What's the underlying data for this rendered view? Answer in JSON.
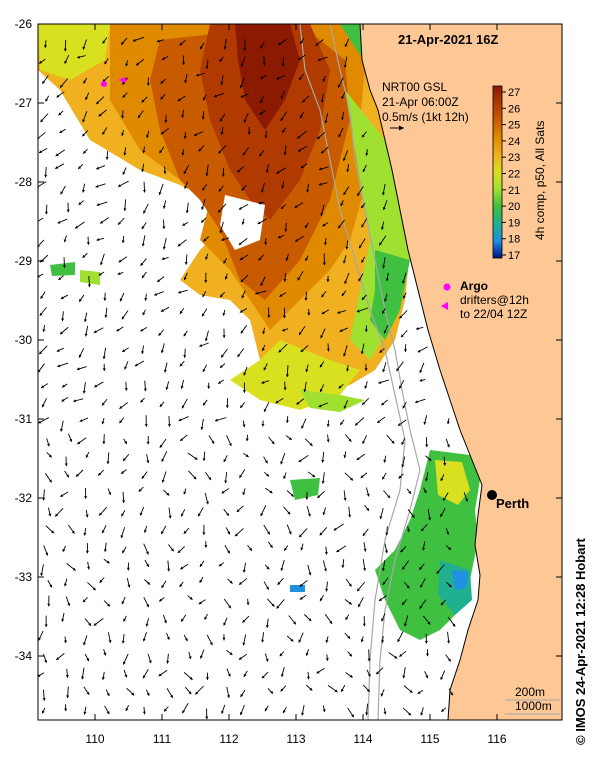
{
  "map": {
    "title": "21-Apr-2021 16Z",
    "product_info": [
      "NRT00 GSL",
      "21-Apr 06:00Z",
      "0.5m/s (1kt 12h)"
    ],
    "colorbar": {
      "label": "4h comp, p50, All Sats",
      "ticks": [
        "27",
        "26",
        "25",
        "24",
        "23",
        "22",
        "21",
        "20",
        "19",
        "18",
        "17"
      ],
      "colors": [
        "#8b1a00",
        "#b03a00",
        "#c85a00",
        "#e08a00",
        "#f0b020",
        "#d8e020",
        "#a0e030",
        "#40c040",
        "#20b090",
        "#2090e0",
        "#1030c0",
        "#001080"
      ]
    },
    "lat_labels": [
      "-26",
      "-27",
      "-28",
      "-29",
      "-30",
      "-31",
      "-32",
      "-33",
      "-34"
    ],
    "lon_labels": [
      "110",
      "111",
      "112",
      "113",
      "114",
      "115",
      "116"
    ],
    "legend": {
      "argo": "Argo",
      "drifters": "drifters@12h",
      "drifters_period": "to 22/04 12Z"
    },
    "city": "Perth",
    "isobaths": [
      "200m",
      "1000m"
    ],
    "credit": "IMOS 24-Apr-2021 12:28 Hobart",
    "copyright_symbol": "©",
    "colors": {
      "land": "#fdc896",
      "ocean": "#ffffff",
      "argo": "#ff00ff",
      "arrow": "#000000",
      "isobath": "#a8a8a8"
    }
  }
}
